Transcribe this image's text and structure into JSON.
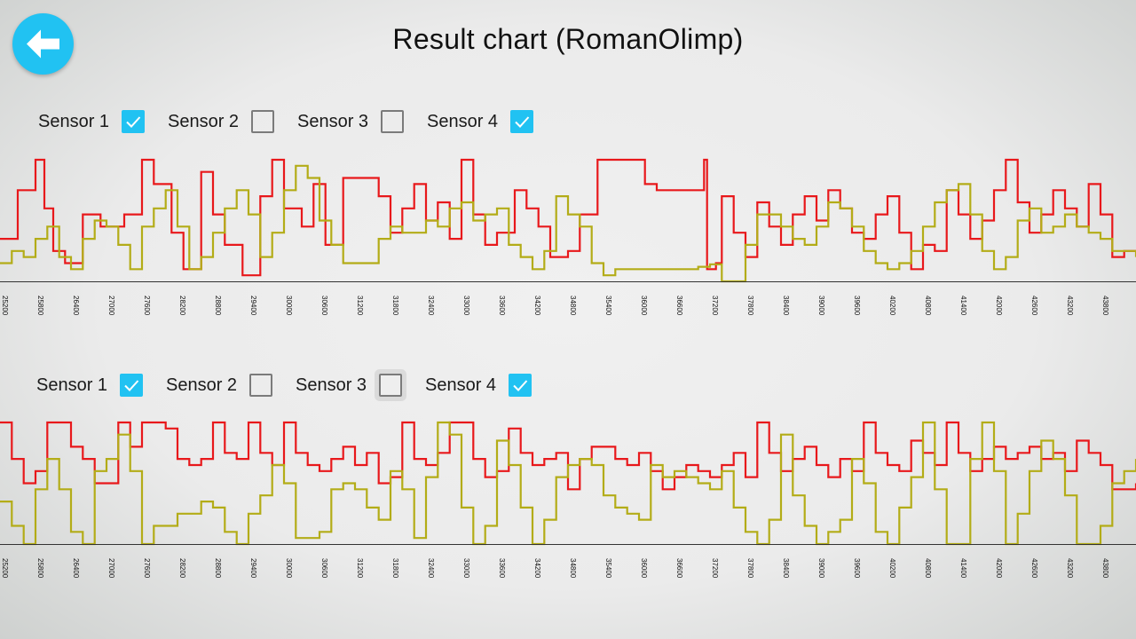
{
  "header": {
    "back_icon": "arrow-left-icon",
    "title": "Result chart (RomanOlimp)"
  },
  "colors": {
    "accent": "#21c2f2",
    "sensor1": "#e8181b",
    "sensor4": "#b3ac17",
    "axis": "#333333"
  },
  "panels": [
    {
      "sensors": [
        {
          "label": "Sensor 1",
          "checked": true
        },
        {
          "label": "Sensor 2",
          "checked": false
        },
        {
          "label": "Sensor 3",
          "checked": false
        },
        {
          "label": "Sensor 4",
          "checked": true
        }
      ]
    },
    {
      "sensors": [
        {
          "label": "Sensor 1",
          "checked": true
        },
        {
          "label": "Sensor 2",
          "checked": false
        },
        {
          "label": "Sensor 3",
          "checked": false
        },
        {
          "label": "Sensor 4",
          "checked": true
        }
      ]
    }
  ],
  "chart_data": [
    {
      "type": "line",
      "x_ticks": [
        "25200",
        "25800",
        "26400",
        "27000",
        "27600",
        "28200",
        "28800",
        "29400",
        "30000",
        "30600",
        "31200",
        "31800",
        "32400",
        "33000",
        "33600",
        "34200",
        "34800",
        "35400",
        "36000",
        "36600",
        "37200",
        "37800",
        "38400",
        "39000",
        "39600",
        "40200",
        "40800",
        "41400",
        "42000",
        "42600",
        "43200",
        "43800"
      ],
      "xlim": [
        25200,
        44400
      ],
      "ylim": [
        0,
        100
      ],
      "grid": false,
      "series": [
        {
          "color": "#e8181b",
          "x": [
            25200,
            25500,
            25800,
            25950,
            26100,
            26300,
            26600,
            26900,
            27300,
            27600,
            27800,
            28100,
            28300,
            28600,
            28800,
            29000,
            29300,
            29600,
            29800,
            30000,
            30300,
            30500,
            30700,
            31000,
            31300,
            31600,
            31800,
            32000,
            32200,
            32400,
            32600,
            32800,
            33000,
            33200,
            33400,
            33600,
            33900,
            34100,
            34300,
            34500,
            34800,
            35000,
            35300,
            35600,
            35900,
            36100,
            36300,
            36500,
            36900,
            37100,
            37150,
            37300,
            37400,
            37600,
            37800,
            38000,
            38200,
            38400,
            38600,
            38800,
            39000,
            39200,
            39400,
            39600,
            39800,
            40000,
            40200,
            40400,
            40600,
            40800,
            41000,
            41200,
            41400,
            41600,
            41800,
            42000,
            42200,
            42400,
            42600,
            42800,
            43000,
            43200,
            43400,
            43600,
            43800,
            44000,
            44200,
            44400
          ],
          "y": [
            35,
            75,
            100,
            60,
            25,
            15,
            55,
            45,
            55,
            100,
            80,
            40,
            10,
            90,
            55,
            30,
            5,
            70,
            100,
            60,
            45,
            80,
            30,
            85,
            85,
            70,
            40,
            60,
            80,
            50,
            65,
            35,
            100,
            55,
            30,
            40,
            75,
            60,
            45,
            20,
            25,
            55,
            100,
            100,
            100,
            80,
            75,
            75,
            75,
            100,
            10,
            15,
            70,
            40,
            20,
            65,
            45,
            30,
            55,
            70,
            50,
            75,
            60,
            40,
            35,
            55,
            70,
            40,
            10,
            30,
            25,
            75,
            55,
            35,
            50,
            75,
            100,
            65,
            40,
            55,
            75,
            60,
            45,
            80,
            55,
            20,
            25,
            25
          ]
        },
        {
          "color": "#b3ac17",
          "x": [
            25200,
            25400,
            25600,
            25800,
            26000,
            26200,
            26400,
            26600,
            26800,
            27000,
            27200,
            27400,
            27600,
            27800,
            28000,
            28200,
            28400,
            28600,
            28800,
            29000,
            29200,
            29400,
            29600,
            29800,
            30000,
            30200,
            30400,
            30600,
            30800,
            31000,
            31200,
            31400,
            31600,
            31800,
            32000,
            32200,
            32400,
            32600,
            32800,
            33000,
            33200,
            33400,
            33600,
            33800,
            34000,
            34200,
            34400,
            34600,
            34800,
            35000,
            35200,
            35400,
            35600,
            35800,
            36000,
            36200,
            36400,
            36600,
            36800,
            37000,
            37200,
            37400,
            37600,
            37800,
            38000,
            38200,
            38400,
            38600,
            38800,
            39000,
            39200,
            39400,
            39600,
            39800,
            40000,
            40200,
            40400,
            40600,
            40800,
            41000,
            41200,
            41400,
            41600,
            41800,
            42000,
            42200,
            42400,
            42600,
            42800,
            43000,
            43200,
            43400,
            43600,
            43800,
            44000,
            44200,
            44400
          ],
          "y": [
            15,
            25,
            20,
            35,
            45,
            20,
            10,
            35,
            50,
            45,
            30,
            10,
            45,
            60,
            75,
            45,
            10,
            20,
            40,
            60,
            75,
            55,
            20,
            40,
            75,
            95,
            85,
            50,
            30,
            15,
            15,
            15,
            35,
            45,
            40,
            40,
            50,
            45,
            60,
            65,
            50,
            55,
            60,
            30,
            20,
            10,
            25,
            70,
            55,
            45,
            15,
            5,
            10,
            10,
            10,
            10,
            10,
            10,
            10,
            12,
            14,
            0,
            0,
            30,
            55,
            55,
            45,
            35,
            30,
            45,
            65,
            60,
            45,
            25,
            15,
            10,
            15,
            25,
            45,
            65,
            75,
            80,
            55,
            25,
            10,
            20,
            50,
            60,
            40,
            45,
            55,
            45,
            40,
            35,
            25,
            25,
            20
          ]
        }
      ]
    },
    {
      "type": "line",
      "x_ticks": [
        "25200",
        "25800",
        "26400",
        "27000",
        "27600",
        "28200",
        "28800",
        "29400",
        "30000",
        "30600",
        "31200",
        "31800",
        "32400",
        "33000",
        "33600",
        "34200",
        "34800",
        "35400",
        "36000",
        "36600",
        "37200",
        "37800",
        "38400",
        "39000",
        "39600",
        "40200",
        "40800",
        "41400",
        "42000",
        "42600",
        "43200",
        "43800"
      ],
      "xlim": [
        25200,
        44400
      ],
      "ylim": [
        0,
        100
      ],
      "grid": false,
      "series": [
        {
          "color": "#e8181b",
          "x": [
            25200,
            25400,
            25600,
            25800,
            26000,
            26200,
            26400,
            26600,
            26800,
            27000,
            27200,
            27400,
            27600,
            27800,
            28000,
            28200,
            28400,
            28600,
            28800,
            29000,
            29200,
            29400,
            29600,
            29800,
            30000,
            30200,
            30400,
            30600,
            30800,
            31000,
            31200,
            31400,
            31600,
            31800,
            32000,
            32200,
            32400,
            32600,
            32800,
            33000,
            33200,
            33400,
            33600,
            33800,
            34000,
            34200,
            34400,
            34600,
            34800,
            35000,
            35200,
            35400,
            35600,
            35800,
            36000,
            36200,
            36400,
            36600,
            36800,
            37000,
            37200,
            37400,
            37600,
            37800,
            38000,
            38200,
            38400,
            38600,
            38800,
            39000,
            39200,
            39400,
            39600,
            39800,
            40000,
            40200,
            40400,
            40600,
            40800,
            41000,
            41200,
            41400,
            41600,
            41800,
            42000,
            42200,
            42400,
            42600,
            42800,
            43000,
            43200,
            43400,
            43600,
            43800,
            44000,
            44200,
            44400
          ],
          "y": [
            100,
            70,
            50,
            60,
            100,
            100,
            80,
            70,
            50,
            50,
            100,
            80,
            100,
            100,
            95,
            70,
            65,
            70,
            100,
            75,
            70,
            100,
            75,
            65,
            100,
            75,
            65,
            60,
            70,
            80,
            65,
            75,
            50,
            55,
            100,
            70,
            65,
            75,
            100,
            100,
            70,
            55,
            60,
            95,
            75,
            65,
            70,
            75,
            45,
            70,
            80,
            80,
            70,
            65,
            75,
            60,
            45,
            55,
            65,
            60,
            55,
            65,
            75,
            55,
            100,
            75,
            60,
            70,
            80,
            65,
            55,
            70,
            60,
            100,
            75,
            65,
            60,
            85,
            75,
            65,
            100,
            75,
            60,
            70,
            80,
            70,
            75,
            80,
            70,
            75,
            60,
            85,
            75,
            65,
            45,
            45,
            50
          ]
        },
        {
          "color": "#b3ac17",
          "x": [
            25200,
            25400,
            25600,
            25800,
            26000,
            26200,
            26400,
            26600,
            26800,
            27000,
            27200,
            27400,
            27600,
            27800,
            28000,
            28200,
            28400,
            28600,
            28800,
            29000,
            29200,
            29400,
            29600,
            29800,
            30000,
            30200,
            30400,
            30600,
            30800,
            31000,
            31200,
            31400,
            31600,
            31800,
            32000,
            32200,
            32400,
            32600,
            32800,
            33000,
            33200,
            33400,
            33600,
            33800,
            34000,
            34200,
            34400,
            34600,
            34800,
            35000,
            35200,
            35400,
            35600,
            35800,
            36000,
            36200,
            36400,
            36600,
            36800,
            37000,
            37200,
            37400,
            37600,
            37800,
            38000,
            38200,
            38400,
            38600,
            38800,
            39000,
            39200,
            39400,
            39600,
            39800,
            40000,
            40200,
            40400,
            40600,
            40800,
            41000,
            41200,
            41400,
            41600,
            41800,
            42000,
            42200,
            42400,
            42600,
            42800,
            43000,
            43200,
            43400,
            43600,
            43800,
            44000,
            44200,
            44400
          ],
          "y": [
            35,
            15,
            0,
            45,
            70,
            45,
            10,
            0,
            60,
            70,
            90,
            60,
            0,
            15,
            15,
            25,
            25,
            35,
            30,
            10,
            0,
            25,
            40,
            65,
            50,
            5,
            5,
            10,
            45,
            50,
            45,
            30,
            20,
            60,
            45,
            5,
            55,
            100,
            90,
            30,
            0,
            15,
            85,
            65,
            30,
            0,
            20,
            55,
            65,
            70,
            65,
            40,
            30,
            25,
            20,
            65,
            55,
            60,
            55,
            50,
            45,
            60,
            30,
            10,
            0,
            20,
            90,
            40,
            15,
            0,
            10,
            20,
            70,
            50,
            10,
            0,
            30,
            55,
            100,
            45,
            0,
            0,
            70,
            100,
            60,
            0,
            25,
            60,
            85,
            70,
            40,
            0,
            0,
            15,
            50,
            60,
            70
          ]
        }
      ]
    }
  ]
}
